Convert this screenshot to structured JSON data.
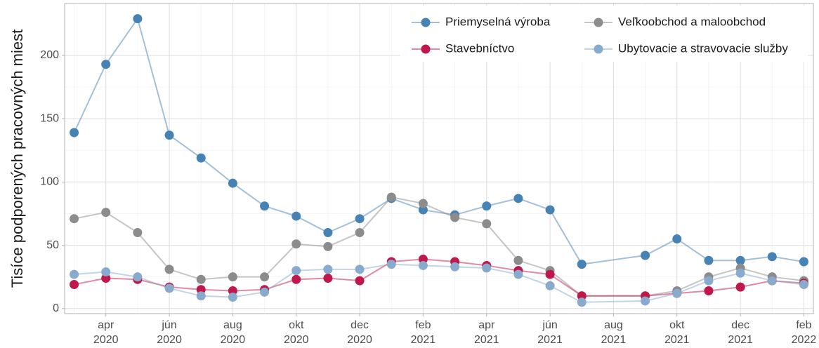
{
  "chart_data": {
    "type": "line",
    "y_label": "Tisíce podporených pracovných miest",
    "x": [
      "2020-03",
      "2020-04",
      "2020-05",
      "2020-06",
      "2020-07",
      "2020-08",
      "2020-09",
      "2020-10",
      "2020-11",
      "2020-12",
      "2021-01",
      "2021-02",
      "2021-03",
      "2021-04",
      "2021-05",
      "2021-06",
      "2021-07",
      "2021-09",
      "2021-10",
      "2021-11",
      "2021-12",
      "2022-01",
      "2022-02"
    ],
    "series": [
      {
        "name": "Priemyselná výroba",
        "color": "#4682b4",
        "values": [
          139,
          193,
          229,
          137,
          119,
          99,
          81,
          73,
          60,
          71,
          87,
          78,
          74,
          81,
          87,
          78,
          35,
          42,
          55,
          38,
          38,
          41,
          37
        ]
      },
      {
        "name": "Veľkoobchod a maloobchod",
        "color": "#8c8c8c",
        "values": [
          71,
          76,
          60,
          31,
          23,
          25,
          25,
          51,
          49,
          60,
          88,
          83,
          72,
          67,
          38,
          30,
          10,
          10,
          14,
          25,
          32,
          25,
          22
        ]
      },
      {
        "name": "Stavebníctvo",
        "color": "#c0174c",
        "values": [
          19,
          24,
          23,
          17,
          15,
          14,
          15,
          23,
          24,
          22,
          37,
          39,
          37,
          34,
          30,
          27,
          10,
          10,
          12,
          14,
          17,
          22,
          20
        ]
      },
      {
        "name": "Ubytovacie a stravovacie služby",
        "color": "#88aacc",
        "values": [
          27,
          29,
          25,
          16,
          10,
          9,
          13,
          30,
          31,
          31,
          35,
          34,
          33,
          32,
          27,
          18,
          5,
          6,
          12,
          22,
          28,
          22,
          19
        ]
      }
    ],
    "xlim": [
      "2020-03",
      "2022-02"
    ],
    "xticks": [
      {
        "value": "2020-04",
        "label": [
          "apr",
          "2020"
        ]
      },
      {
        "value": "2020-06",
        "label": [
          "jún",
          "2020"
        ]
      },
      {
        "value": "2020-08",
        "label": [
          "aug",
          "2020"
        ]
      },
      {
        "value": "2020-10",
        "label": [
          "okt",
          "2020"
        ]
      },
      {
        "value": "2020-12",
        "label": [
          "dec",
          "2020"
        ]
      },
      {
        "value": "2021-02",
        "label": [
          "feb",
          "2021"
        ]
      },
      {
        "value": "2021-04",
        "label": [
          "apr",
          "2021"
        ]
      },
      {
        "value": "2021-06",
        "label": [
          "jún",
          "2021"
        ]
      },
      {
        "value": "2021-08",
        "label": [
          "aug",
          "2021"
        ]
      },
      {
        "value": "2021-10",
        "label": [
          "okt",
          "2021"
        ]
      },
      {
        "value": "2021-12",
        "label": [
          "dec",
          "2021"
        ]
      },
      {
        "value": "2022-02",
        "label": [
          "feb",
          "2022"
        ]
      }
    ],
    "ylim": [
      -4,
      241
    ],
    "yticks": [
      0,
      50,
      100,
      150,
      200
    ],
    "grid": true,
    "legend": "top-right"
  }
}
